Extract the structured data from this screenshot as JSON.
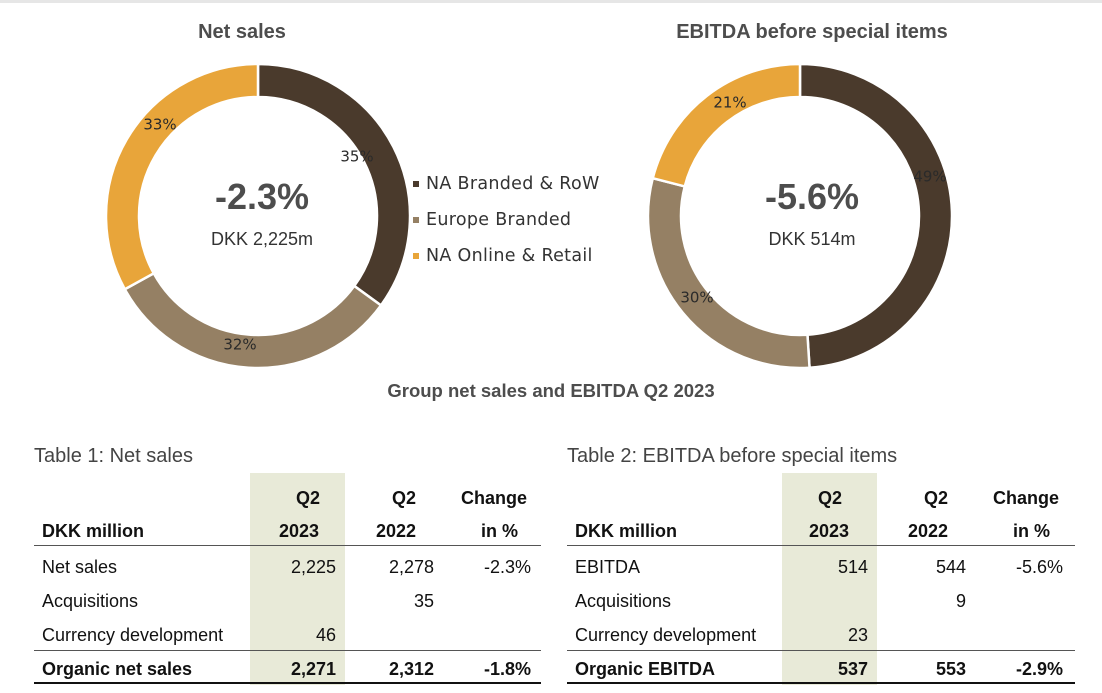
{
  "chart_data": [
    {
      "type": "pie",
      "title": "Net sales",
      "center_value": "-2.3%",
      "center_sub": "DKK 2,225m",
      "series": [
        {
          "name": "NA Branded & RoW",
          "value": 35,
          "label": "35%",
          "color": "#4a3a2c"
        },
        {
          "name": "Europe Branded",
          "value": 32,
          "label": "32%",
          "color": "#958064"
        },
        {
          "name": "NA Online & Retail",
          "value": 33,
          "label": "33%",
          "color": "#e8a53a"
        }
      ]
    },
    {
      "type": "pie",
      "title": "EBITDA before special items",
      "center_value": "-5.6%",
      "center_sub": "DKK 514m",
      "series": [
        {
          "name": "NA Branded & RoW",
          "value": 49,
          "label": "49%",
          "color": "#4a3a2c"
        },
        {
          "name": "Europe Branded",
          "value": 30,
          "label": "30%",
          "color": "#958064"
        },
        {
          "name": "NA Online & Retail",
          "value": 21,
          "label": "21%",
          "color": "#e8a53a"
        }
      ]
    }
  ],
  "legend": [
    {
      "label": "NA Branded & RoW",
      "color": "#4a3a2c"
    },
    {
      "label": "Europe Branded",
      "color": "#958064"
    },
    {
      "label": "NA Online & Retail",
      "color": "#e8a53a"
    }
  ],
  "group_title": "Group net sales and EBITDA Q2 2023",
  "tables": [
    {
      "caption": "Table 1: Net sales",
      "header_top": [
        "",
        "Q2",
        "Q2",
        "Change"
      ],
      "header_bottom": [
        "DKK million",
        "2023",
        "2022",
        "in %"
      ],
      "rows": [
        [
          "Net sales",
          "2,225",
          "2,278",
          "-2.3%"
        ],
        [
          "Acquisitions",
          "",
          "35",
          ""
        ],
        [
          "Currency development",
          "46",
          "",
          ""
        ],
        [
          "Organic net sales",
          "2,271",
          "2,312",
          "-1.8%"
        ]
      ]
    },
    {
      "caption": "Table 2: EBITDA before special items",
      "header_top": [
        "",
        "Q2",
        "Q2",
        "Change"
      ],
      "header_bottom": [
        "DKK million",
        "2023",
        "2022",
        "in %"
      ],
      "rows": [
        [
          "EBITDA",
          "514",
          "544",
          "-5.6%"
        ],
        [
          "Acquisitions",
          "",
          "9",
          ""
        ],
        [
          "Currency development",
          "23",
          "",
          ""
        ],
        [
          "Organic EBITDA",
          "537",
          "553",
          "-2.9%"
        ]
      ]
    }
  ]
}
